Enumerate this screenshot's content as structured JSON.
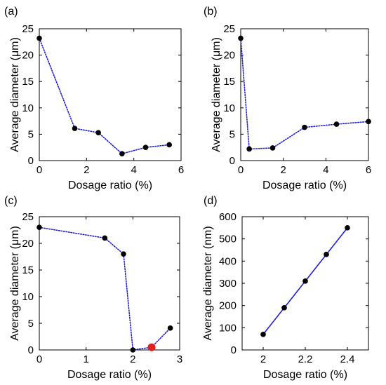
{
  "chart_data": [
    {
      "panel_label": "(a)",
      "type": "line",
      "line_style": "dotted",
      "line_color": "#1f1fd6",
      "marker_color": "#000000",
      "xlabel": "Dosage ratio (%)",
      "ylabel": "Average diameter (μm)",
      "xlim": [
        0,
        6
      ],
      "ylim": [
        0,
        25
      ],
      "xticks": [
        0,
        2,
        4,
        6
      ],
      "yticks": [
        0,
        5,
        10,
        15,
        20,
        25
      ],
      "x": [
        0,
        1.5,
        2.5,
        3.5,
        4.5,
        5.5
      ],
      "y": [
        23.2,
        6.1,
        5.3,
        1.3,
        2.5,
        3.0
      ]
    },
    {
      "panel_label": "(b)",
      "type": "line",
      "line_style": "dotted",
      "line_color": "#1f1fd6",
      "marker_color": "#000000",
      "xlabel": "Dosage ratio (%)",
      "ylabel": "Average diameter (μm)",
      "xlim": [
        0,
        6
      ],
      "ylim": [
        0,
        25
      ],
      "xticks": [
        0,
        2,
        4,
        6
      ],
      "yticks": [
        0,
        5,
        10,
        15,
        20,
        25
      ],
      "x": [
        0,
        0.4,
        1.5,
        3,
        4.5,
        6
      ],
      "y": [
        23.2,
        2.2,
        2.4,
        6.3,
        6.9,
        7.4
      ]
    },
    {
      "panel_label": "(c)",
      "type": "line",
      "line_style": "dotted",
      "line_color": "#1f1fd6",
      "marker_color": "#000000",
      "highlight_color": "#e02020",
      "highlight_index": 4,
      "xlabel": "Dosage ratio (%)",
      "ylabel": "Average diameter (μm)",
      "xlim": [
        0,
        3
      ],
      "ylim": [
        0,
        25
      ],
      "xticks": [
        0,
        1,
        2,
        3
      ],
      "yticks": [
        0,
        5,
        10,
        15,
        20,
        25
      ],
      "x": [
        0,
        1.4,
        1.8,
        2.0,
        2.4,
        2.8
      ],
      "y": [
        23.0,
        21.0,
        18.0,
        0.0,
        0.5,
        4.1
      ]
    },
    {
      "panel_label": "(d)",
      "type": "line",
      "line_style": "solid",
      "line_color": "#1f1fd6",
      "marker_color": "#000000",
      "xlabel": "Dosage ratio (%)",
      "ylabel": "Average diameter (nm)",
      "xlim": [
        1.9,
        2.5
      ],
      "ylim": [
        0,
        600
      ],
      "xticks": [
        2,
        2.2,
        2.4
      ],
      "xtick_labels": [
        "2",
        "2.2",
        "2.4"
      ],
      "yticks": [
        0,
        100,
        200,
        300,
        400,
        500,
        600
      ],
      "x": [
        2.0,
        2.1,
        2.2,
        2.3,
        2.4
      ],
      "y": [
        70,
        190,
        310,
        430,
        550
      ]
    }
  ]
}
